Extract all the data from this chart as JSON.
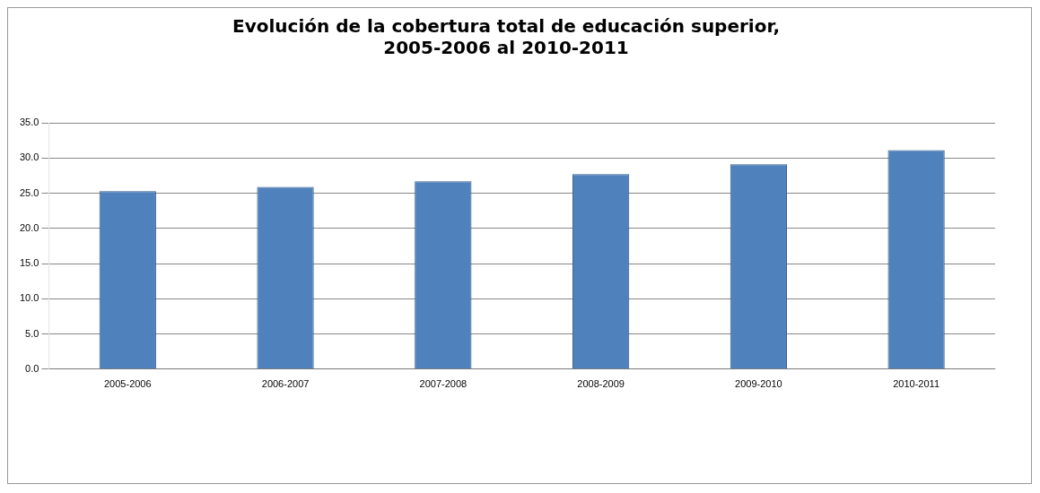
{
  "chart_data": {
    "type": "bar",
    "title": "Evolución de la cobertura total de educación superior, 2005-2006 al 2010-2011",
    "categories": [
      "2005-2006",
      "2006-2007",
      "2007-2008",
      "2008-2009",
      "2009-2010",
      "2010-2011"
    ],
    "values": [
      25.3,
      25.9,
      26.7,
      27.7,
      29.1,
      31.1
    ],
    "color": "#4f81bd",
    "ylim": [
      0,
      35
    ],
    "yticks": [
      {
        "value": 0,
        "label": "0.0"
      },
      {
        "value": 5,
        "label": "5.0"
      },
      {
        "value": 10,
        "label": "10.0"
      },
      {
        "value": 15,
        "label": "15.0"
      },
      {
        "value": 20,
        "label": "20.0"
      },
      {
        "value": 25,
        "label": "25.0"
      },
      {
        "value": 30,
        "label": "30.0"
      },
      {
        "value": 35,
        "label": "35.0"
      }
    ],
    "grid": "y",
    "legend": false
  }
}
